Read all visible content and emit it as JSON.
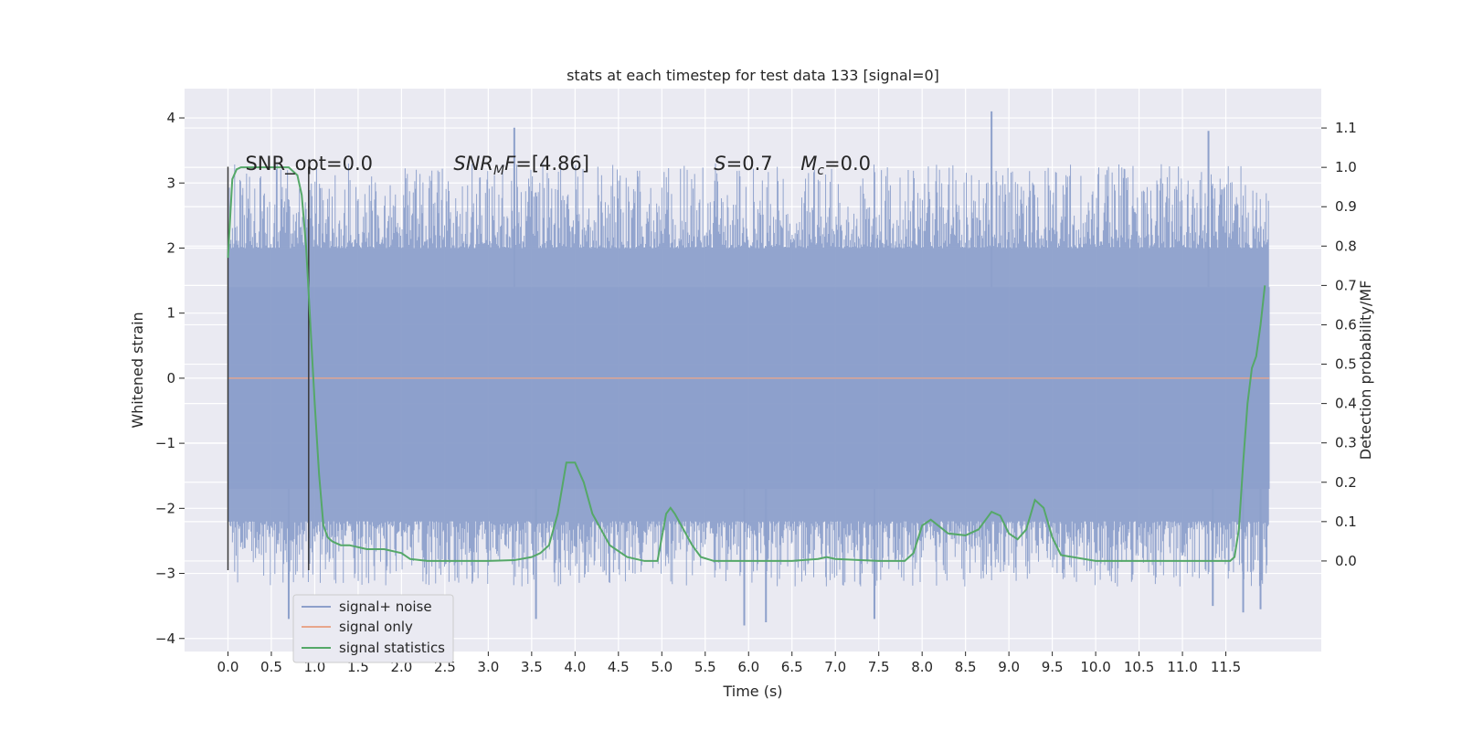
{
  "chart_data": {
    "type": "line",
    "title": "stats at each timestep for test data 133 [signal=0]",
    "xlabel": "Time (s)",
    "ylabel": "Whitened strain",
    "y2label": "Detection probability/MF",
    "xlim": [
      -0.5,
      12.6
    ],
    "ylim": [
      -4.2,
      4.45
    ],
    "y2lim": [
      -0.23,
      1.2
    ],
    "x_ticks": [
      0.0,
      0.5,
      1.0,
      1.5,
      2.0,
      2.5,
      3.0,
      3.5,
      4.0,
      4.5,
      5.0,
      5.5,
      6.0,
      6.5,
      7.0,
      7.5,
      8.0,
      8.5,
      9.0,
      9.5,
      10.0,
      10.5,
      11.0,
      11.5
    ],
    "x_tick_labels": [
      "0.0",
      "0.5",
      "1.0",
      "1.5",
      "2.0",
      "2.5",
      "3.0",
      "3.5",
      "4.0",
      "4.5",
      "5.0",
      "5.5",
      "6.0",
      "6.5",
      "7.0",
      "7.5",
      "8.0",
      "8.5",
      "9.0",
      "9.5",
      "10.0",
      "10.5",
      "11.0",
      "11.5"
    ],
    "y_ticks": [
      -4,
      -3,
      -2,
      -1,
      0,
      1,
      2,
      3,
      4
    ],
    "y_tick_labels": [
      "−4",
      "−3",
      "−2",
      "−1",
      "0",
      "1",
      "2",
      "3",
      "4"
    ],
    "y2_ticks": [
      0.0,
      0.1,
      0.2,
      0.3,
      0.4,
      0.5,
      0.6,
      0.7,
      0.8,
      0.9,
      1.0,
      1.1
    ],
    "y2_tick_labels": [
      "0.0",
      "0.1",
      "0.2",
      "0.3",
      "0.4",
      "0.5",
      "0.6",
      "0.7",
      "0.8",
      "0.9",
      "1.0",
      "1.1"
    ],
    "grid": true,
    "legend_position": "lower-left",
    "noise_series": {
      "name": "signal+ noise",
      "color": "#8da0cb",
      "x_start": 0.0,
      "x_end": 12.0,
      "typical_min": -1.7,
      "typical_max": 1.4,
      "spikes": [
        {
          "x": 3.3,
          "y": 3.85
        },
        {
          "x": 8.8,
          "y": 4.1
        },
        {
          "x": 11.3,
          "y": 3.8
        },
        {
          "x": 0.7,
          "y": -3.7
        },
        {
          "x": 3.55,
          "y": -3.7
        },
        {
          "x": 5.95,
          "y": -3.8
        },
        {
          "x": 6.2,
          "y": -3.75
        },
        {
          "x": 7.45,
          "y": -3.7
        },
        {
          "x": 11.35,
          "y": -3.5
        },
        {
          "x": 11.7,
          "y": -3.6
        },
        {
          "x": 11.9,
          "y": -3.55
        }
      ]
    },
    "signal_only": {
      "name": "signal only",
      "color": "#e8a68c",
      "x": [
        0.0,
        12.0
      ],
      "y": [
        0.0,
        0.0
      ]
    },
    "statistics_series": {
      "name": "signal statistics",
      "color": "#55a868",
      "x": [
        0.0,
        0.05,
        0.1,
        0.15,
        0.2,
        0.3,
        0.5,
        0.7,
        0.8,
        0.85,
        0.9,
        0.95,
        1.0,
        1.05,
        1.1,
        1.15,
        1.2,
        1.3,
        1.4,
        1.6,
        1.8,
        2.0,
        2.1,
        2.3,
        3.0,
        3.3,
        3.5,
        3.6,
        3.7,
        3.8,
        3.9,
        4.0,
        4.1,
        4.2,
        4.4,
        4.6,
        4.8,
        4.95,
        5.05,
        5.1,
        5.15,
        5.25,
        5.35,
        5.45,
        5.6,
        6.0,
        6.5,
        6.8,
        6.9,
        7.0,
        7.5,
        7.8,
        7.9,
        8.0,
        8.1,
        8.3,
        8.5,
        8.65,
        8.8,
        8.9,
        9.0,
        9.1,
        9.2,
        9.3,
        9.4,
        9.5,
        9.6,
        10.0,
        11.0,
        11.55,
        11.6,
        11.65,
        11.7,
        11.75,
        11.8,
        11.85,
        11.9,
        11.95
      ],
      "y": [
        0.77,
        0.97,
        0.995,
        1.0,
        1.0,
        1.0,
        1.0,
        1.0,
        0.98,
        0.93,
        0.8,
        0.6,
        0.4,
        0.22,
        0.09,
        0.06,
        0.05,
        0.04,
        0.04,
        0.03,
        0.03,
        0.02,
        0.005,
        0.0,
        0.0,
        0.002,
        0.01,
        0.02,
        0.04,
        0.12,
        0.25,
        0.25,
        0.2,
        0.12,
        0.04,
        0.01,
        0.0,
        0.0,
        0.12,
        0.135,
        0.12,
        0.08,
        0.04,
        0.01,
        0.0,
        0.0,
        0.0,
        0.005,
        0.01,
        0.005,
        0.0,
        0.0,
        0.02,
        0.09,
        0.105,
        0.07,
        0.065,
        0.08,
        0.125,
        0.115,
        0.07,
        0.055,
        0.08,
        0.155,
        0.135,
        0.06,
        0.015,
        0.0,
        0.0,
        0.0,
        0.01,
        0.08,
        0.25,
        0.4,
        0.49,
        0.52,
        0.6,
        0.7
      ]
    },
    "vertical_lines": [
      {
        "x": 0.0,
        "y_top": 3.25,
        "y_bottom": -2.95
      },
      {
        "x": 0.93,
        "y_top": 3.25,
        "y_bottom": -2.95
      }
    ],
    "annotations": [
      {
        "x": 0.2,
        "y": 3.2,
        "text": "SNR_opt=0.0"
      },
      {
        "x": 2.6,
        "y": 3.2,
        "parts": [
          {
            "t": "SNR",
            "i": true
          },
          {
            "t": "M",
            "i": true,
            "sub": true
          },
          {
            "t": "F",
            "i": true
          },
          {
            "t": "=[4.86]",
            "i": false
          }
        ]
      },
      {
        "x": 5.6,
        "y": 3.2,
        "parts": [
          {
            "t": "S",
            "i": true
          },
          {
            "t": "=0.7",
            "i": false
          }
        ]
      },
      {
        "x": 6.6,
        "y": 3.2,
        "parts": [
          {
            "t": "M",
            "i": true
          },
          {
            "t": "c",
            "i": true,
            "sub": true
          },
          {
            "t": "=0.0",
            "i": false
          }
        ]
      }
    ],
    "legend": [
      "signal+ noise",
      "signal only",
      "signal statistics"
    ]
  }
}
